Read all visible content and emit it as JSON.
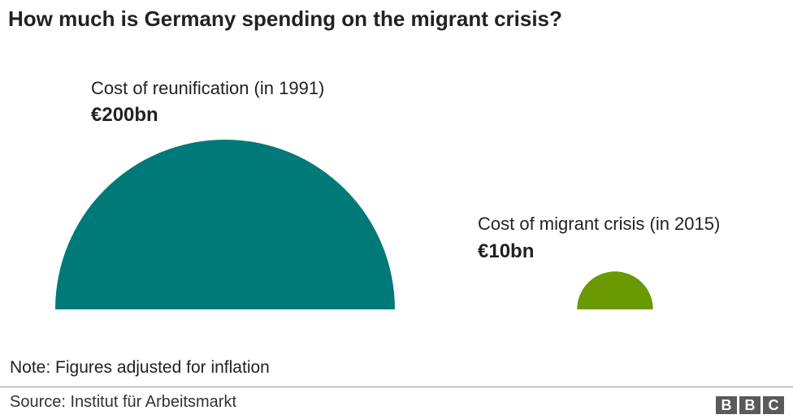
{
  "title": "How much is Germany spending on the migrant crisis?",
  "chart_data": {
    "type": "area",
    "series": [
      {
        "label": "Cost of reunification (in 1991)",
        "value": 200,
        "value_label": "€200bn",
        "color": "#007a78"
      },
      {
        "label": "Cost of migrant crisis (in 2015)",
        "value": 10,
        "value_label": "€10bn",
        "color": "#6a9a00"
      }
    ]
  },
  "note": "Note: Figures adjusted for inflation",
  "source": "Source: Institut für Arbeitsmarkt",
  "logo": {
    "letters": [
      "B",
      "B",
      "C"
    ]
  }
}
